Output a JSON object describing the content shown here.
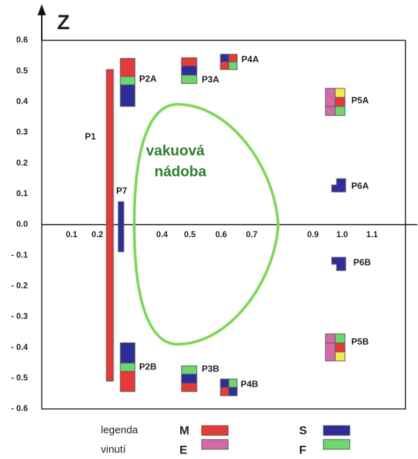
{
  "axis": {
    "z_label": "Z",
    "y_ticks": [
      "0.6",
      "0.5",
      "0.4",
      "0.3",
      "0.2",
      "0.1",
      "0.0",
      "- 0.1",
      "- 0.2",
      "- 0.3",
      "- 0.4",
      "- 0.5",
      "- 0.6"
    ],
    "x_ticks": [
      "0.1",
      "0.2",
      "0.4",
      "0.5",
      "0.6",
      "0.7",
      "0.9",
      "1.0",
      "1.1"
    ]
  },
  "coils": [
    {
      "label": "P1"
    },
    {
      "label": "P7"
    },
    {
      "label": "P2A"
    },
    {
      "label": "P2B"
    },
    {
      "label": "P3A"
    },
    {
      "label": "P3B"
    },
    {
      "label": "P4A"
    },
    {
      "label": "P4B"
    },
    {
      "label": "P5A"
    },
    {
      "label": "P5B"
    },
    {
      "label": "P6A"
    },
    {
      "label": "P6B"
    }
  ],
  "vessel_label": [
    "vakuová",
    "nádoba"
  ],
  "legend": {
    "title": [
      "legenda",
      "vinutí"
    ],
    "items": [
      {
        "key": "M",
        "color": "#e53a3a"
      },
      {
        "key": "E",
        "color": "#d46aa8"
      },
      {
        "key": "S",
        "color": "#2e2e9a"
      },
      {
        "key": "F",
        "color": "#6fd66f"
      }
    ]
  }
}
